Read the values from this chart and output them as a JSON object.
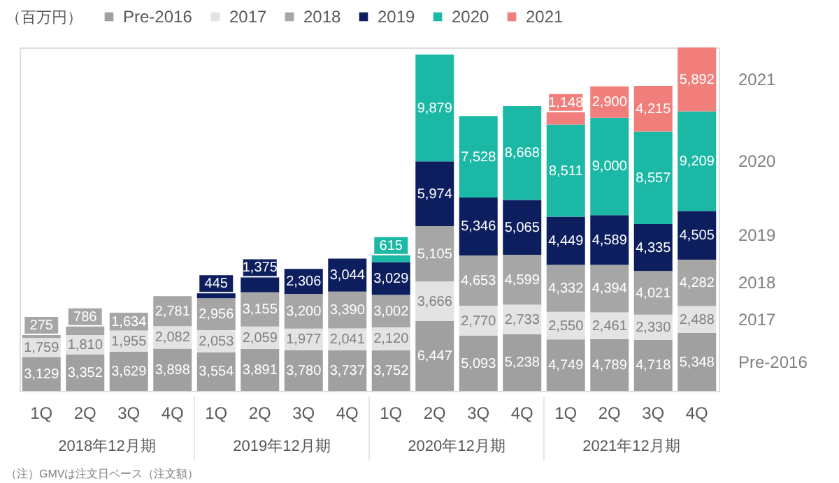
{
  "chart_data": {
    "type": "bar",
    "stacked": true,
    "legend": "top left",
    "ylabel": "（百万円）",
    "categories": [
      "1Q",
      "2Q",
      "3Q",
      "4Q",
      "1Q",
      "2Q",
      "3Q",
      "4Q",
      "1Q",
      "2Q",
      "3Q",
      "4Q",
      "1Q",
      "2Q",
      "3Q",
      "4Q"
    ],
    "series": [
      {
        "name": "Pre-2016",
        "color": "#a0a0a0",
        "values": [
          3129,
          3352,
          3629,
          3898,
          3554,
          3891,
          3780,
          3737,
          3752,
          6447,
          5093,
          5238,
          4749,
          4789,
          4718,
          5348
        ],
        "value_labels": [
          "3,129",
          "3,352",
          "3,629",
          "3,898",
          "3,554",
          "3,891",
          "3,780",
          "3,737",
          "3,752",
          "6,447",
          "5,093",
          "5,238",
          "4,749",
          "4,789",
          "4,718",
          "5,348"
        ]
      },
      {
        "name": "2017",
        "color": "#e3e3e3",
        "values": [
          1759,
          1810,
          1955,
          2082,
          2053,
          2059,
          1977,
          2041,
          2120,
          3666,
          2770,
          2733,
          2550,
          2461,
          2330,
          2488
        ],
        "value_labels": [
          "1,759",
          "1,810",
          "1,955",
          "2,082",
          "2,053",
          "2,059",
          "1,977",
          "2,041",
          "2,120",
          "3,666",
          "2,770",
          "2,733",
          "2,550",
          "2,461",
          "2,330",
          "2,488"
        ]
      },
      {
        "name": "2018",
        "color": "#a6a6a6",
        "values": [
          275,
          786,
          1634,
          2781,
          2956,
          3155,
          3200,
          3390,
          3002,
          5105,
          4653,
          4599,
          4332,
          4394,
          4021,
          4282
        ],
        "value_labels": [
          "275",
          "786",
          "1,634",
          "2,781",
          "2,956",
          "3,155",
          "3,200",
          "3,390",
          "3,002",
          "5,105",
          "4,653",
          "4,599",
          "4,332",
          "4,394",
          "4,021",
          "4,282"
        ]
      },
      {
        "name": "2019",
        "color": "#0d1e5e",
        "values": [
          null,
          null,
          null,
          null,
          445,
          1375,
          2306,
          3044,
          3029,
          5974,
          5346,
          5065,
          4449,
          4589,
          4335,
          4505
        ],
        "value_labels": [
          null,
          null,
          null,
          null,
          "445",
          "1,375",
          "2,306",
          "3,044",
          "3,029",
          "5,974",
          "5,346",
          "5,065",
          "4,449",
          "4,589",
          "4,335",
          "4,505"
        ]
      },
      {
        "name": "2020",
        "color": "#1cb8a6",
        "values": [
          null,
          null,
          null,
          null,
          null,
          null,
          null,
          null,
          615,
          9879,
          7528,
          8668,
          8511,
          9000,
          8557,
          9209
        ],
        "value_labels": [
          null,
          null,
          null,
          null,
          null,
          null,
          null,
          null,
          "615",
          "9,879",
          "7,528",
          "8,668",
          "8,511",
          "9,000",
          "8,557",
          "9,209"
        ]
      },
      {
        "name": "2021",
        "color": "#f07f7c",
        "values": [
          null,
          null,
          null,
          null,
          null,
          null,
          null,
          null,
          null,
          null,
          null,
          null,
          1148,
          2900,
          4215,
          5892
        ],
        "value_labels": [
          null,
          null,
          null,
          null,
          null,
          null,
          null,
          null,
          null,
          null,
          null,
          null,
          "1,148",
          "2,900",
          "4,215",
          "5,892"
        ]
      }
    ],
    "annotations": [
      "2018年12月期",
      "2019年12月期",
      "2020年12月期",
      "2021年12月期",
      "（注）GMVは注文日ベース（注文額）"
    ]
  }
}
